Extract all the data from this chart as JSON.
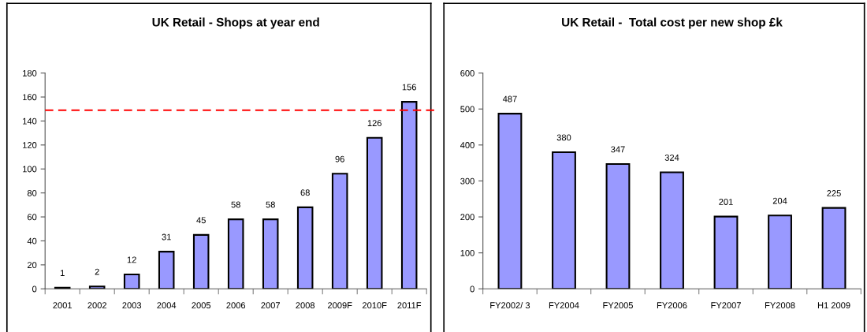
{
  "chart_data": [
    {
      "type": "bar",
      "title": "UK Retail - Shops at year end",
      "categories": [
        "2001",
        "2002",
        "2003",
        "2004",
        "2005",
        "2006",
        "2007",
        "2008",
        "2009F",
        "2010F",
        "2011F"
      ],
      "values": [
        1,
        2,
        12,
        31,
        45,
        58,
        58,
        68,
        96,
        126,
        156
      ],
      "color": "#9999ff",
      "ylim": [
        0,
        180
      ],
      "yticks": [
        0,
        20,
        40,
        60,
        80,
        100,
        120,
        140,
        160,
        180
      ],
      "data_labels": true,
      "grid": false,
      "legend": false,
      "ref_lines": [
        {
          "axis": "y",
          "value": 149,
          "color": "#ff0000",
          "line_style": "dashed"
        }
      ]
    },
    {
      "type": "bar",
      "title": "UK Retail -  Total cost per new shop £k",
      "categories": [
        "FY2002/ 3",
        "FY2004",
        "FY2005",
        "FY2006",
        "FY2007",
        "FY2008",
        "H1 2009"
      ],
      "values": [
        487,
        380,
        347,
        324,
        201,
        204,
        225
      ],
      "color": "#9999ff",
      "ylim": [
        0,
        600
      ],
      "yticks": [
        0,
        100,
        200,
        300,
        400,
        500,
        600
      ],
      "data_labels": true,
      "grid": false,
      "legend": false
    }
  ]
}
